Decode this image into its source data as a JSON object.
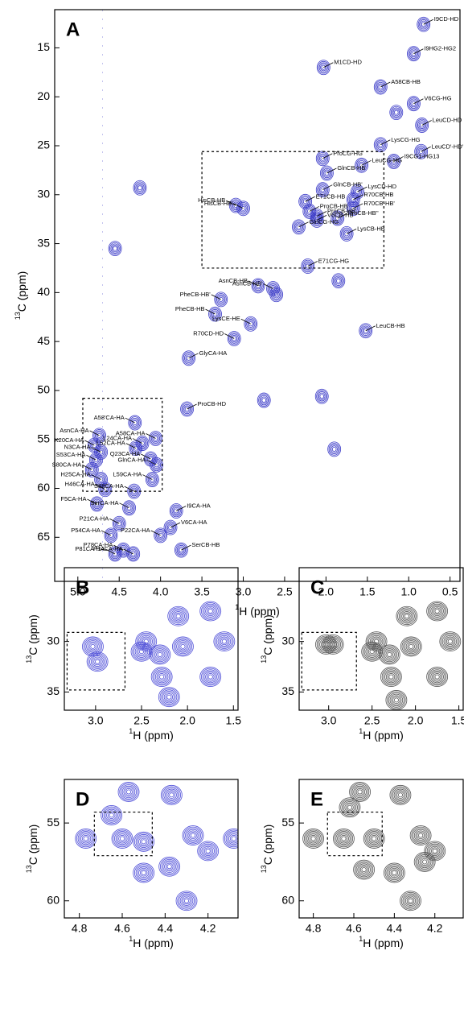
{
  "chart_data": [
    {
      "type": "contour",
      "title": "A",
      "xlabel_nucleus": "1",
      "xlabel": "H  (ppm)",
      "ylabel_nucleus": "13",
      "ylabel": "C  (ppm)",
      "xlim": [
        5.28,
        0.38
      ],
      "ylim": [
        11.1,
        69.5
      ],
      "xticks": [
        {
          "value": 5,
          "label": "5.0"
        },
        4.5,
        {
          "value": 4,
          "label": "4.0"
        },
        3.5,
        {
          "value": 3,
          "label": "3.0"
        },
        2.5,
        {
          "value": 2,
          "label": "2.0"
        },
        1.5,
        {
          "value": 1,
          "label": "1.0"
        },
        0.5
      ],
      "yticks": [
        15,
        20,
        25,
        30,
        35,
        40,
        45,
        50,
        55,
        60,
        65
      ],
      "color": "#3c3cc8",
      "boxes": [
        {
          "xlim": [
            3.5,
            1.3
          ],
          "ylim": [
            25.6,
            37.5
          ]
        },
        {
          "xlim": [
            4.94,
            3.98
          ],
          "ylim": [
            50.8,
            60.3
          ]
        }
      ],
      "peaks": [
        {
          "label": "M1CD-HD",
          "x": 2.03,
          "y": 17.0
        },
        {
          "label": "I9CD-HD",
          "x": 0.82,
          "y": 12.6
        },
        {
          "label": "I9HG2-HG2",
          "x": 0.94,
          "y": 15.6
        },
        {
          "label": "A58CB-HB",
          "x": 1.34,
          "y": 19.0
        },
        {
          "label": "V6CG-HG",
          "x": 0.94,
          "y": 20.7
        },
        {
          "label": "LeuCD-HD",
          "x": 0.84,
          "y": 22.9
        },
        {
          "label": "LysCG-HG",
          "x": 1.34,
          "y": 24.9
        },
        {
          "label": "LeuCD'-HD'",
          "x": 0.85,
          "y": 25.6
        },
        {
          "label": "LeuCG-HG",
          "x": 1.57,
          "y": 27.0
        },
        {
          "label": "ProCG-HG",
          "x": 2.04,
          "y": 26.3
        },
        {
          "label": "I9CG1-HG13",
          "x": 1.18,
          "y": 26.6
        },
        {
          "label": "GlnCB-HB",
          "x": 1.99,
          "y": 27.8
        },
        {
          "label": "GlnCB-HB'",
          "x": 2.04,
          "y": 29.5
        },
        {
          "label": "LysCD-HD",
          "x": 1.62,
          "y": 29.7
        },
        {
          "label": "HisCB-HB",
          "x": 3.09,
          "y": 31.1
        },
        {
          "label": "HisCB-HB'",
          "x": 3.0,
          "y": 31.4
        },
        {
          "label": "E71CB-HB",
          "x": 2.25,
          "y": 30.7
        },
        {
          "label": "R70CB-HB",
          "x": 1.67,
          "y": 30.5
        },
        {
          "label": "ProCB-HB",
          "x": 2.2,
          "y": 31.7
        },
        {
          "label": "R70CB-HB'",
          "x": 1.67,
          "y": 31.4
        },
        {
          "label": "ProCB-HB'",
          "x": 2.11,
          "y": 32.2
        },
        {
          "label": "V6CB-HB",
          "x": 2.11,
          "y": 32.6
        },
        {
          "label": "GlnCG-HG",
          "x": 2.33,
          "y": 33.3
        },
        {
          "label": "ProCB-HB''",
          "x": 1.86,
          "y": 32.4
        },
        {
          "label": "LysCB-HB",
          "x": 1.75,
          "y": 34.0
        },
        {
          "label": "E71CG-HG",
          "x": 2.22,
          "y": 37.3
        },
        {
          "label": "AsnCB-HB",
          "x": 2.82,
          "y": 39.3
        },
        {
          "label": "AsnCB-HB'",
          "x": 2.64,
          "y": 39.6
        },
        {
          "label": "PheCB-HB'",
          "x": 3.27,
          "y": 40.7
        },
        {
          "label": "PheCB-HB",
          "x": 3.34,
          "y": 42.2
        },
        {
          "label": "LysCE-HE",
          "x": 2.91,
          "y": 43.2
        },
        {
          "label": "R70CD-HD",
          "x": 3.11,
          "y": 44.7
        },
        {
          "label": "LeuCB-HB",
          "x": 1.52,
          "y": 43.9
        },
        {
          "label": "GlyCA-HA",
          "x": 3.66,
          "y": 46.7
        },
        {
          "label": "ProCB-HD",
          "x": 3.68,
          "y": 51.9
        },
        {
          "label": "A58'CA-HA",
          "x": 4.31,
          "y": 53.3
        },
        {
          "label": "A58CA-HA",
          "x": 4.06,
          "y": 54.9
        },
        {
          "label": "AsnCA-HA",
          "x": 4.74,
          "y": 54.6
        },
        {
          "label": "K20CA-HA",
          "x": 4.8,
          "y": 55.6
        },
        {
          "label": "L52CA-HA",
          "x": 4.3,
          "y": 55.9
        },
        {
          "label": "L24CA-HA",
          "x": 4.22,
          "y": 55.4
        },
        {
          "label": "N3CA-HA",
          "x": 4.72,
          "y": 56.3
        },
        {
          "label": "Q23CA-HA",
          "x": 4.12,
          "y": 57.0
        },
        {
          "label": "S53CA-HA",
          "x": 4.78,
          "y": 57.1
        },
        {
          "label": "GlnCA-HA",
          "x": 4.05,
          "y": 57.6
        },
        {
          "label": "S80CA-HA",
          "x": 4.83,
          "y": 58.1
        },
        {
          "label": "H25CA-HA",
          "x": 4.72,
          "y": 59.1
        },
        {
          "label": "L59CA-HA",
          "x": 4.1,
          "y": 59.1
        },
        {
          "label": "H46CA-HA",
          "x": 4.67,
          "y": 60.1
        },
        {
          "label": "S88CA-HA",
          "x": 4.32,
          "y": 60.3
        },
        {
          "label": "F5CA-HA",
          "x": 4.77,
          "y": 61.6
        },
        {
          "label": "SerCA-HA",
          "x": 4.38,
          "y": 62.0
        },
        {
          "label": "I9CA-HA",
          "x": 3.81,
          "y": 62.3
        },
        {
          "label": "P21CA-HA",
          "x": 4.5,
          "y": 63.6
        },
        {
          "label": "V6CA-HA",
          "x": 3.88,
          "y": 64.0
        },
        {
          "label": "P22CA-HA",
          "x": 4.0,
          "y": 64.8
        },
        {
          "label": "P54CA-HA",
          "x": 4.6,
          "y": 64.8
        },
        {
          "label": "P78CA-HA",
          "x": 4.45,
          "y": 66.3
        },
        {
          "label": "P14CA-HA",
          "x": 4.33,
          "y": 66.7
        },
        {
          "label": "P81CA-HA",
          "x": 4.55,
          "y": 66.7
        },
        {
          "label": "SerCB-HB",
          "x": 3.75,
          "y": 66.3
        },
        {
          "x": 4.25,
          "y": 29.3
        },
        {
          "x": 4.55,
          "y": 35.5
        },
        {
          "x": 2.75,
          "y": 51.0
        },
        {
          "x": 2.05,
          "y": 50.6
        },
        {
          "x": 1.9,
          "y": 56.0
        },
        {
          "x": 2.6,
          "y": 40.2
        },
        {
          "x": 1.85,
          "y": 38.8
        },
        {
          "x": 1.15,
          "y": 21.6
        }
      ]
    },
    {
      "type": "contour",
      "title": "B",
      "xlabel_nucleus": "1",
      "xlabel": "H (ppm)",
      "ylabel_nucleus": "13",
      "ylabel": "C (ppm)",
      "xlim": [
        3.34,
        1.45
      ],
      "ylim": [
        22.7,
        36.8
      ],
      "xticks": [
        {
          "value": 3,
          "label": "3.0"
        },
        2.5,
        {
          "value": 2,
          "label": "2.0"
        },
        1.5
      ],
      "yticks": [
        30,
        35
      ],
      "color": "#5050d8",
      "boxes": [
        {
          "xlim": [
            3.31,
            2.68
          ],
          "ylim": [
            29.1,
            34.8
          ]
        }
      ],
      "peaks": [
        {
          "x": 3.03,
          "y": 30.5
        },
        {
          "x": 2.98,
          "y": 32.0
        },
        {
          "x": 2.45,
          "y": 30.0
        },
        {
          "x": 2.3,
          "y": 31.3
        },
        {
          "x": 2.28,
          "y": 33.5
        },
        {
          "x": 2.2,
          "y": 35.5
        },
        {
          "x": 2.1,
          "y": 27.5
        },
        {
          "x": 2.05,
          "y": 30.5
        },
        {
          "x": 1.75,
          "y": 27.0
        },
        {
          "x": 1.6,
          "y": 30.0
        },
        {
          "x": 1.75,
          "y": 33.5
        },
        {
          "x": 2.5,
          "y": 31.0
        }
      ]
    },
    {
      "type": "contour",
      "title": "C",
      "xlabel_nucleus": "1",
      "xlabel": "H (ppm)",
      "ylabel_nucleus": "13",
      "ylabel": "C (ppm)",
      "xlim": [
        3.34,
        1.45
      ],
      "ylim": [
        22.7,
        36.8
      ],
      "xticks": [
        {
          "value": 3,
          "label": "3.0"
        },
        2.5,
        {
          "value": 2,
          "label": "2.0"
        },
        1.5
      ],
      "yticks": [
        30,
        35
      ],
      "color": "#555555",
      "boxes": [
        {
          "xlim": [
            3.31,
            2.68
          ],
          "ylim": [
            29.1,
            34.8
          ]
        }
      ],
      "peaks": [
        {
          "x": 3.03,
          "y": 30.3
        },
        {
          "x": 2.95,
          "y": 30.3
        },
        {
          "x": 2.45,
          "y": 30.0
        },
        {
          "x": 2.3,
          "y": 31.3
        },
        {
          "x": 2.28,
          "y": 33.5
        },
        {
          "x": 2.22,
          "y": 35.8
        },
        {
          "x": 2.1,
          "y": 27.5
        },
        {
          "x": 2.05,
          "y": 30.5
        },
        {
          "x": 1.75,
          "y": 27.0
        },
        {
          "x": 1.6,
          "y": 30.0
        },
        {
          "x": 1.75,
          "y": 33.5
        },
        {
          "x": 2.5,
          "y": 31.0
        }
      ]
    },
    {
      "type": "contour",
      "title": "D",
      "xlabel_nucleus": "1",
      "xlabel": "H (ppm)",
      "ylabel_nucleus": "13",
      "ylabel": "C (ppm)",
      "xlim": [
        4.87,
        4.06
      ],
      "ylim": [
        52.2,
        61.1
      ],
      "xticks": [
        4.8,
        4.6,
        4.4,
        4.2
      ],
      "yticks": [
        55,
        60
      ],
      "color": "#5050d8",
      "boxes": [
        {
          "xlim": [
            4.73,
            4.46
          ],
          "ylim": [
            54.3,
            57.1
          ]
        }
      ],
      "peaks": [
        {
          "x": 4.57,
          "y": 53.0
        },
        {
          "x": 4.37,
          "y": 53.2
        },
        {
          "x": 4.77,
          "y": 56.0
        },
        {
          "x": 4.6,
          "y": 56.0
        },
        {
          "x": 4.5,
          "y": 56.2
        },
        {
          "x": 4.27,
          "y": 55.8
        },
        {
          "x": 4.2,
          "y": 56.8
        },
        {
          "x": 4.5,
          "y": 58.2
        },
        {
          "x": 4.38,
          "y": 57.8
        },
        {
          "x": 4.3,
          "y": 60.0
        },
        {
          "x": 4.65,
          "y": 54.5
        },
        {
          "x": 4.08,
          "y": 56.0
        }
      ]
    },
    {
      "type": "contour",
      "title": "E",
      "xlabel_nucleus": "1",
      "xlabel": "H (ppm)",
      "ylabel_nucleus": "13",
      "ylabel": "C (ppm)",
      "xlim": [
        4.87,
        4.06
      ],
      "ylim": [
        52.2,
        61.1
      ],
      "xticks": [
        4.8,
        4.6,
        4.4,
        4.2
      ],
      "yticks": [
        55,
        60
      ],
      "color": "#555555",
      "boxes": [
        {
          "xlim": [
            4.73,
            4.46
          ],
          "ylim": [
            54.3,
            57.1
          ]
        }
      ],
      "peaks": [
        {
          "x": 4.57,
          "y": 53.0
        },
        {
          "x": 4.37,
          "y": 53.2
        },
        {
          "x": 4.8,
          "y": 56.0
        },
        {
          "x": 4.65,
          "y": 56.0
        },
        {
          "x": 4.5,
          "y": 56.0
        },
        {
          "x": 4.27,
          "y": 55.8
        },
        {
          "x": 4.2,
          "y": 56.8
        },
        {
          "x": 4.55,
          "y": 58.0
        },
        {
          "x": 4.4,
          "y": 58.2
        },
        {
          "x": 4.32,
          "y": 60.0
        },
        {
          "x": 4.62,
          "y": 54.0
        },
        {
          "x": 4.25,
          "y": 57.5
        }
      ]
    }
  ]
}
